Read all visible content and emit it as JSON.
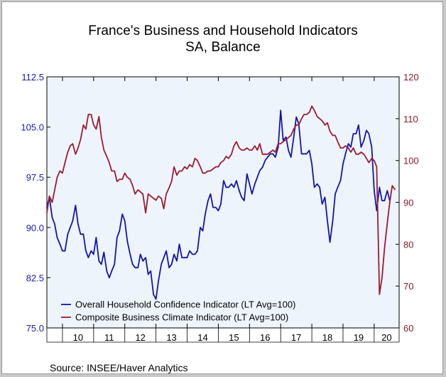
{
  "chart_data": {
    "type": "line",
    "title": "France's Business and Household Indicators",
    "subtitle": "SA, Balance",
    "source": "Source:   INSEE/Haver Analytics",
    "x_tick_labels": [
      "10",
      "11",
      "12",
      "13",
      "14",
      "15",
      "16",
      "17",
      "18",
      "19",
      "20"
    ],
    "x_range": [
      2009.5,
      2020.8
    ],
    "left_axis": {
      "ticks": [
        "112.5",
        "105.0",
        "97.5",
        "90.0",
        "82.5",
        "75.0"
      ],
      "range": [
        75,
        112.5
      ]
    },
    "right_axis": {
      "ticks": [
        "120",
        "110",
        "100",
        "90",
        "80",
        "70",
        "60"
      ],
      "range": [
        60,
        120
      ]
    },
    "grid": false,
    "legend_position": "bottom-left",
    "colors": {
      "household": "#1414a8",
      "business": "#9b1b30",
      "plot_bg": "#eef4fc"
    },
    "series": [
      {
        "name": "Overall Household Confidence Indicator (LT Avg=100)",
        "axis": "left",
        "color": "#1414a8",
        "points": [
          [
            2009.5,
            93.0
          ],
          [
            2009.58,
            94.5
          ],
          [
            2009.67,
            91.5
          ],
          [
            2009.75,
            90.5
          ],
          [
            2009.83,
            88.5
          ],
          [
            2009.92,
            87.5
          ],
          [
            2010.0,
            86.5
          ],
          [
            2010.08,
            86.5
          ],
          [
            2010.17,
            89.0
          ],
          [
            2010.25,
            90.0
          ],
          [
            2010.33,
            91.0
          ],
          [
            2010.42,
            93.3
          ],
          [
            2010.5,
            90.5
          ],
          [
            2010.58,
            89.0
          ],
          [
            2010.67,
            89.0
          ],
          [
            2010.75,
            86.5
          ],
          [
            2010.83,
            85.5
          ],
          [
            2010.92,
            86.5
          ],
          [
            2011.0,
            86.0
          ],
          [
            2011.08,
            88.5
          ],
          [
            2011.17,
            85.0
          ],
          [
            2011.25,
            84.5
          ],
          [
            2011.33,
            86.3
          ],
          [
            2011.42,
            83.5
          ],
          [
            2011.5,
            82.5
          ],
          [
            2011.58,
            83.5
          ],
          [
            2011.67,
            84.5
          ],
          [
            2011.75,
            88.5
          ],
          [
            2011.83,
            89.5
          ],
          [
            2011.92,
            92.0
          ],
          [
            2012.0,
            91.0
          ],
          [
            2012.08,
            88.0
          ],
          [
            2012.17,
            86.0
          ],
          [
            2012.25,
            84.5
          ],
          [
            2012.33,
            84.0
          ],
          [
            2012.42,
            84.0
          ],
          [
            2012.5,
            86.0
          ],
          [
            2012.58,
            85.0
          ],
          [
            2012.67,
            85.5
          ],
          [
            2012.75,
            83.0
          ],
          [
            2012.83,
            83.5
          ],
          [
            2012.92,
            80.0
          ],
          [
            2013.0,
            79.3
          ],
          [
            2013.08,
            82.0
          ],
          [
            2013.17,
            84.5
          ],
          [
            2013.25,
            85.5
          ],
          [
            2013.33,
            86.5
          ],
          [
            2013.42,
            84.0
          ],
          [
            2013.5,
            84.5
          ],
          [
            2013.58,
            86.0
          ],
          [
            2013.67,
            85.0
          ],
          [
            2013.75,
            87.5
          ],
          [
            2013.83,
            85.5
          ],
          [
            2013.92,
            85.5
          ],
          [
            2014.0,
            85.5
          ],
          [
            2014.08,
            86.5
          ],
          [
            2014.17,
            86.0
          ],
          [
            2014.25,
            86.0
          ],
          [
            2014.33,
            86.5
          ],
          [
            2014.42,
            90.0
          ],
          [
            2014.5,
            89.5
          ],
          [
            2014.58,
            92.0
          ],
          [
            2014.67,
            94.0
          ],
          [
            2014.75,
            95.0
          ],
          [
            2014.83,
            93.0
          ],
          [
            2014.92,
            93.0
          ],
          [
            2015.0,
            92.5
          ],
          [
            2015.08,
            93.5
          ],
          [
            2015.17,
            97.0
          ],
          [
            2015.25,
            96.0
          ],
          [
            2015.33,
            96.0
          ],
          [
            2015.42,
            96.5
          ],
          [
            2015.5,
            96.0
          ],
          [
            2015.58,
            97.0
          ],
          [
            2015.67,
            95.5
          ],
          [
            2015.75,
            94.5
          ],
          [
            2015.83,
            94.0
          ],
          [
            2015.92,
            98.0
          ],
          [
            2016.0,
            96.5
          ],
          [
            2016.08,
            95.0
          ],
          [
            2016.17,
            96.5
          ],
          [
            2016.25,
            97.5
          ],
          [
            2016.33,
            98.5
          ],
          [
            2016.42,
            99.0
          ],
          [
            2016.5,
            100.0
          ],
          [
            2016.58,
            100.5
          ],
          [
            2016.67,
            101.0
          ],
          [
            2016.75,
            101.0
          ],
          [
            2016.83,
            100.5
          ],
          [
            2016.92,
            102.0
          ],
          [
            2017.0,
            107.5
          ],
          [
            2017.08,
            103.0
          ],
          [
            2017.17,
            103.5
          ],
          [
            2017.25,
            101.5
          ],
          [
            2017.33,
            100.5
          ],
          [
            2017.42,
            103.5
          ],
          [
            2017.5,
            106.5
          ],
          [
            2017.58,
            105.5
          ],
          [
            2017.67,
            101.0
          ],
          [
            2017.75,
            101.0
          ],
          [
            2017.83,
            101.0
          ],
          [
            2017.92,
            101.5
          ],
          [
            2018.0,
            99.5
          ],
          [
            2018.08,
            96.0
          ],
          [
            2018.17,
            96.5
          ],
          [
            2018.25,
            96.0
          ],
          [
            2018.33,
            93.5
          ],
          [
            2018.42,
            94.5
          ],
          [
            2018.5,
            91.0
          ],
          [
            2018.58,
            87.8
          ],
          [
            2018.67,
            91.0
          ],
          [
            2018.75,
            95.0
          ],
          [
            2018.83,
            96.0
          ],
          [
            2018.92,
            97.0
          ],
          [
            2019.0,
            99.5
          ],
          [
            2019.08,
            101.0
          ],
          [
            2019.17,
            102.5
          ],
          [
            2019.25,
            102.0
          ],
          [
            2019.33,
            104.0
          ],
          [
            2019.42,
            104.0
          ],
          [
            2019.5,
            105.3
          ],
          [
            2019.58,
            102.0
          ],
          [
            2019.67,
            103.0
          ],
          [
            2019.75,
            104.5
          ],
          [
            2019.83,
            104.0
          ],
          [
            2019.92,
            102.0
          ],
          [
            2020.0,
            95.5
          ],
          [
            2020.08,
            92.5
          ],
          [
            2020.17,
            96.0
          ],
          [
            2020.25,
            94.0
          ],
          [
            2020.33,
            94.0
          ],
          [
            2020.42,
            95.5
          ],
          [
            2020.5,
            94.0
          ]
        ]
      },
      {
        "name": "Composite Business Climate Indicator (LT Avg=100)",
        "axis": "right",
        "color": "#9b1b30",
        "points": [
          [
            2009.5,
            87.5
          ],
          [
            2009.58,
            91.5
          ],
          [
            2009.67,
            90.0
          ],
          [
            2009.75,
            93.0
          ],
          [
            2009.83,
            96.0
          ],
          [
            2009.92,
            97.5
          ],
          [
            2010.0,
            97.0
          ],
          [
            2010.08,
            99.5
          ],
          [
            2010.17,
            102.0
          ],
          [
            2010.25,
            103.5
          ],
          [
            2010.33,
            104.0
          ],
          [
            2010.42,
            101.5
          ],
          [
            2010.5,
            103.0
          ],
          [
            2010.58,
            105.0
          ],
          [
            2010.67,
            108.5
          ],
          [
            2010.75,
            107.5
          ],
          [
            2010.83,
            111.0
          ],
          [
            2010.92,
            111.0
          ],
          [
            2011.0,
            108.5
          ],
          [
            2011.08,
            107.5
          ],
          [
            2011.17,
            110.5
          ],
          [
            2011.25,
            105.5
          ],
          [
            2011.33,
            102.5
          ],
          [
            2011.42,
            101.0
          ],
          [
            2011.5,
            99.5
          ],
          [
            2011.58,
            97.5
          ],
          [
            2011.67,
            97.5
          ],
          [
            2011.75,
            95.0
          ],
          [
            2011.83,
            95.5
          ],
          [
            2011.92,
            95.5
          ],
          [
            2012.0,
            97.0
          ],
          [
            2012.08,
            96.0
          ],
          [
            2012.17,
            95.5
          ],
          [
            2012.25,
            94.0
          ],
          [
            2012.33,
            92.0
          ],
          [
            2012.42,
            93.0
          ],
          [
            2012.5,
            92.5
          ],
          [
            2012.58,
            92.0
          ],
          [
            2012.67,
            87.5
          ],
          [
            2012.75,
            92.0
          ],
          [
            2012.83,
            91.5
          ],
          [
            2012.92,
            91.0
          ],
          [
            2013.0,
            90.5
          ],
          [
            2013.08,
            91.5
          ],
          [
            2013.17,
            91.0
          ],
          [
            2013.25,
            88.5
          ],
          [
            2013.33,
            92.0
          ],
          [
            2013.42,
            93.5
          ],
          [
            2013.5,
            95.0
          ],
          [
            2013.58,
            98.5
          ],
          [
            2013.67,
            96.5
          ],
          [
            2013.75,
            97.5
          ],
          [
            2013.83,
            97.5
          ],
          [
            2013.92,
            98.5
          ],
          [
            2014.0,
            98.0
          ],
          [
            2014.08,
            99.0
          ],
          [
            2014.17,
            98.5
          ],
          [
            2014.25,
            100.5
          ],
          [
            2014.33,
            100.0
          ],
          [
            2014.42,
            98.5
          ],
          [
            2014.5,
            97.0
          ],
          [
            2014.58,
            97.0
          ],
          [
            2014.67,
            97.5
          ],
          [
            2014.75,
            97.5
          ],
          [
            2014.83,
            98.0
          ],
          [
            2014.92,
            98.5
          ],
          [
            2015.0,
            98.5
          ],
          [
            2015.08,
            99.5
          ],
          [
            2015.17,
            100.0
          ],
          [
            2015.25,
            101.0
          ],
          [
            2015.33,
            100.5
          ],
          [
            2015.42,
            101.5
          ],
          [
            2015.5,
            103.5
          ],
          [
            2015.58,
            104.5
          ],
          [
            2015.67,
            103.0
          ],
          [
            2015.75,
            102.5
          ],
          [
            2015.83,
            102.5
          ],
          [
            2015.92,
            103.0
          ],
          [
            2016.0,
            102.5
          ],
          [
            2016.08,
            102.5
          ],
          [
            2016.17,
            103.5
          ],
          [
            2016.25,
            102.5
          ],
          [
            2016.33,
            104.0
          ],
          [
            2016.42,
            101.5
          ],
          [
            2016.5,
            101.5
          ],
          [
            2016.58,
            101.5
          ],
          [
            2016.67,
            102.0
          ],
          [
            2016.75,
            102.5
          ],
          [
            2016.83,
            102.0
          ],
          [
            2016.92,
            104.0
          ],
          [
            2017.0,
            104.0
          ],
          [
            2017.08,
            104.5
          ],
          [
            2017.17,
            105.0
          ],
          [
            2017.25,
            105.5
          ],
          [
            2017.33,
            106.0
          ],
          [
            2017.42,
            107.5
          ],
          [
            2017.5,
            108.5
          ],
          [
            2017.58,
            108.5
          ],
          [
            2017.67,
            110.0
          ],
          [
            2017.75,
            111.0
          ],
          [
            2017.83,
            111.0
          ],
          [
            2017.92,
            111.5
          ],
          [
            2018.0,
            113.0
          ],
          [
            2018.08,
            112.0
          ],
          [
            2018.17,
            110.5
          ],
          [
            2018.25,
            110.0
          ],
          [
            2018.33,
            109.5
          ],
          [
            2018.42,
            108.5
          ],
          [
            2018.5,
            109.0
          ],
          [
            2018.58,
            107.0
          ],
          [
            2018.67,
            106.0
          ],
          [
            2018.75,
            106.0
          ],
          [
            2018.83,
            104.5
          ],
          [
            2018.92,
            103.0
          ],
          [
            2019.0,
            103.0
          ],
          [
            2019.08,
            103.5
          ],
          [
            2019.17,
            103.0
          ],
          [
            2019.25,
            102.0
          ],
          [
            2019.33,
            103.0
          ],
          [
            2019.42,
            101.5
          ],
          [
            2019.5,
            101.5
          ],
          [
            2019.58,
            102.0
          ],
          [
            2019.67,
            101.5
          ],
          [
            2019.75,
            100.5
          ],
          [
            2019.83,
            99.5
          ],
          [
            2019.92,
            100.5
          ],
          [
            2020.0,
            100.0
          ],
          [
            2020.08,
            98.5
          ],
          [
            2020.17,
            68.0
          ],
          [
            2020.25,
            72.0
          ],
          [
            2020.33,
            79.0
          ],
          [
            2020.42,
            85.0
          ],
          [
            2020.5,
            90.0
          ],
          [
            2020.58,
            94.0
          ],
          [
            2020.67,
            93.0
          ]
        ]
      }
    ]
  }
}
